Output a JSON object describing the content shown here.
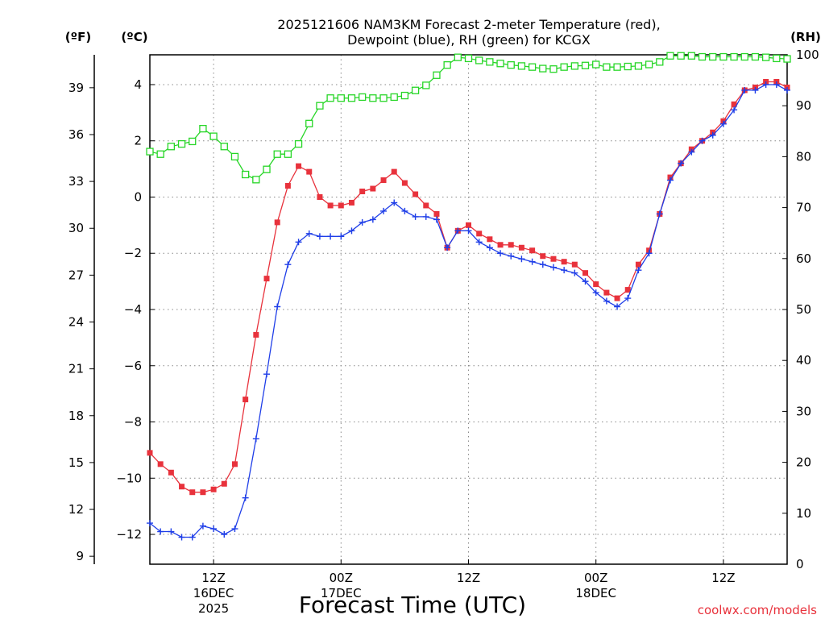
{
  "chart_data": {
    "type": "line",
    "title_line1": "2025121606 NAM3KM Forecast 2-meter Temperature (red),",
    "title_line2": "Dewpoint (blue), RH (green) for KCGX",
    "xlabel": "Forecast Time (UTC)",
    "credit": "coolwx.com/models",
    "units": {
      "fahrenheit": "(ºF)",
      "celsius": "(ºC)",
      "rh": "(RH)"
    },
    "x_forecast_hours": [
      0,
      60
    ],
    "xlim_hours": [
      0,
      60
    ],
    "x_ticks": [
      {
        "hour": 6,
        "line1": "12Z",
        "line2": "16DEC",
        "line3": "2025"
      },
      {
        "hour": 18,
        "line1": "00Z",
        "line2": "17DEC",
        "line3": ""
      },
      {
        "hour": 30,
        "line1": "12Z",
        "line2": "",
        "line3": ""
      },
      {
        "hour": 42,
        "line1": "00Z",
        "line2": "18DEC",
        "line3": ""
      },
      {
        "hour": 54,
        "line1": "12Z",
        "line2": "",
        "line3": ""
      }
    ],
    "ylim_celsius": [
      -13.06,
      5.06
    ],
    "ylim_rh": [
      0,
      100
    ],
    "celsius_ticks": [
      "4",
      "2",
      "0",
      "−2",
      "−4",
      "−6",
      "−8",
      "−10",
      "−12"
    ],
    "celsius_tick_values": [
      4,
      2,
      0,
      -2,
      -4,
      -6,
      -8,
      -10,
      -12
    ],
    "fahrenheit_ticks": [
      "39",
      "36",
      "33",
      "30",
      "27",
      "24",
      "21",
      "18",
      "15",
      "12",
      "9"
    ],
    "fahrenheit_tick_values": [
      39,
      36,
      33,
      30,
      27,
      24,
      21,
      18,
      15,
      12,
      9
    ],
    "rh_ticks": [
      "100",
      "90",
      "80",
      "70",
      "60",
      "50",
      "40",
      "30",
      "20",
      "10",
      "0"
    ],
    "rh_tick_values": [
      100,
      90,
      80,
      70,
      60,
      50,
      40,
      30,
      20,
      10,
      0
    ],
    "series": [
      {
        "name": "Temperature (°C)",
        "color": "#e8323c",
        "marker": "filled-square",
        "axis": "celsius",
        "values": [
          -9.1,
          -9.5,
          -9.8,
          -10.3,
          -10.5,
          -10.5,
          -10.4,
          -10.2,
          -9.5,
          -7.2,
          -4.9,
          -2.9,
          -0.9,
          0.4,
          1.1,
          0.9,
          0.0,
          -0.3,
          -0.3,
          -0.2,
          0.2,
          0.3,
          0.6,
          0.9,
          0.5,
          0.1,
          -0.3,
          -0.6,
          -1.8,
          -1.2,
          -1.0,
          -1.3,
          -1.5,
          -1.7,
          -1.7,
          -1.8,
          -1.9,
          -2.1,
          -2.2,
          -2.3,
          -2.4,
          -2.7,
          -3.1,
          -3.4,
          -3.6,
          -3.3,
          -2.4,
          -1.9,
          -0.6,
          0.7,
          1.2,
          1.7,
          2.0,
          2.3,
          2.7,
          3.3,
          3.8,
          3.9,
          4.1,
          4.1,
          3.9
        ]
      },
      {
        "name": "Dewpoint (°C)",
        "color": "#1f3ee8",
        "marker": "plus",
        "axis": "celsius",
        "values": [
          -11.6,
          -11.9,
          -11.9,
          -12.1,
          -12.1,
          -11.7,
          -11.8,
          -12.0,
          -11.8,
          -10.7,
          -8.6,
          -6.3,
          -3.9,
          -2.4,
          -1.6,
          -1.3,
          -1.4,
          -1.4,
          -1.4,
          -1.2,
          -0.9,
          -0.8,
          -0.5,
          -0.2,
          -0.5,
          -0.7,
          -0.7,
          -0.8,
          -1.8,
          -1.2,
          -1.2,
          -1.6,
          -1.8,
          -2.0,
          -2.1,
          -2.2,
          -2.3,
          -2.4,
          -2.5,
          -2.6,
          -2.7,
          -3.0,
          -3.4,
          -3.7,
          -3.9,
          -3.6,
          -2.6,
          -2.0,
          -0.6,
          0.6,
          1.2,
          1.6,
          2.0,
          2.2,
          2.6,
          3.1,
          3.8,
          3.8,
          4.0,
          4.0,
          3.8
        ]
      },
      {
        "name": "RH (%)",
        "color": "#27d627",
        "marker": "open-square",
        "axis": "rh",
        "values": [
          81,
          80.5,
          82,
          82.5,
          83,
          85.5,
          84,
          82,
          80,
          76.5,
          75.5,
          77.5,
          80.5,
          80.5,
          82.5,
          86.5,
          90,
          91.5,
          91.5,
          91.5,
          91.7,
          91.5,
          91.5,
          91.7,
          92,
          93,
          94,
          96,
          98,
          99.5,
          99.3,
          98.9,
          98.6,
          98.3,
          98,
          97.8,
          97.6,
          97.3,
          97.2,
          97.6,
          97.8,
          97.9,
          98.1,
          97.6,
          97.6,
          97.7,
          97.8,
          98.1,
          98.6,
          99.8,
          99.8,
          99.8,
          99.6,
          99.6,
          99.6,
          99.6,
          99.6,
          99.6,
          99.5,
          99.3,
          99.2
        ]
      }
    ]
  }
}
